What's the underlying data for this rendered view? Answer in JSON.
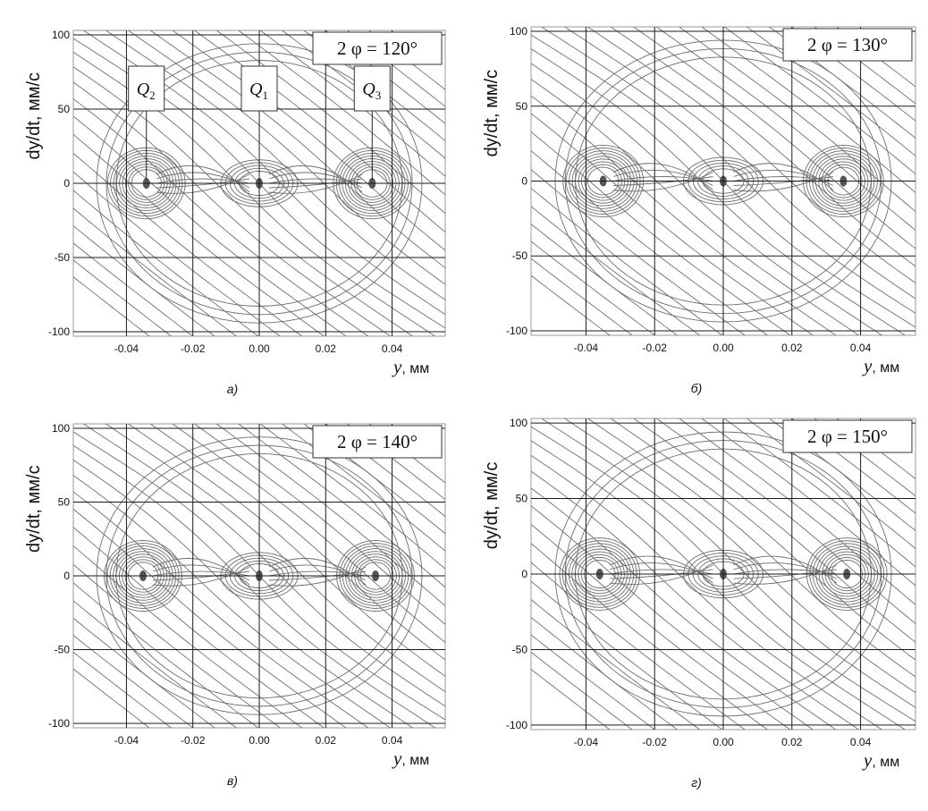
{
  "chart_data": [
    {
      "type": "scatter",
      "subtype": "phase-portrait",
      "panel_caption": "а)",
      "angle_label": "2 φ = 120°",
      "ylabel": "dy/dt,  мм/с",
      "xlabel_var": "y",
      "xlabel_unit": ", мм",
      "xlim": [
        -0.056,
        0.056
      ],
      "ylim": [
        -103,
        103
      ],
      "xticks": [
        "-0.04",
        "-0.02",
        "0.00",
        "0.02",
        "0.04"
      ],
      "yticks": [
        "100",
        "50",
        "0",
        "-50",
        "-100"
      ],
      "grid": true,
      "fixed_points": [
        {
          "name": "Q",
          "sub": "2",
          "x": -0.034,
          "y": 0
        },
        {
          "name": "Q",
          "sub": "1",
          "x": 0.0,
          "y": 0
        },
        {
          "name": "Q",
          "sub": "3",
          "x": 0.034,
          "y": 0
        }
      ],
      "attractor_amplitude_mm": 0.034,
      "boundary_mm": 0.04
    },
    {
      "type": "scatter",
      "subtype": "phase-portrait",
      "panel_caption": "б)",
      "angle_label": "2 φ = 130°",
      "ylabel": "dy/dt,  мм/с",
      "xlabel_var": "y",
      "xlabel_unit": ", мм",
      "xlim": [
        -0.056,
        0.056
      ],
      "ylim": [
        -103,
        103
      ],
      "xticks": [
        "-0.04",
        "-0.02",
        "0.00",
        "0.02",
        "0.04"
      ],
      "yticks": [
        "100",
        "50",
        "0",
        "-50",
        "-100"
      ],
      "grid": true,
      "fixed_points": [
        {
          "x": -0.035,
          "y": 0
        },
        {
          "x": 0.0,
          "y": 0
        },
        {
          "x": 0.035,
          "y": 0
        }
      ],
      "attractor_amplitude_mm": 0.035,
      "boundary_mm": 0.04
    },
    {
      "type": "scatter",
      "subtype": "phase-portrait",
      "panel_caption": "в)",
      "angle_label": "2 φ = 140°",
      "ylabel": "dy/dt,  мм/с",
      "xlabel_var": "y",
      "xlabel_unit": ", мм",
      "xlim": [
        -0.056,
        0.056
      ],
      "ylim": [
        -103,
        103
      ],
      "xticks": [
        "-0.04",
        "-0.02",
        "0.00",
        "0.02",
        "0.04"
      ],
      "yticks": [
        "100",
        "50",
        "0",
        "-50",
        "-100"
      ],
      "grid": true,
      "fixed_points": [
        {
          "x": -0.035,
          "y": 0
        },
        {
          "x": 0.0,
          "y": 0
        },
        {
          "x": 0.035,
          "y": 0
        }
      ],
      "attractor_amplitude_mm": 0.035,
      "boundary_mm": 0.04
    },
    {
      "type": "scatter",
      "subtype": "phase-portrait",
      "panel_caption": "г)",
      "angle_label": "2 φ = 150°",
      "ylabel": "dy/dt,  мм/с",
      "xlabel_var": "y",
      "xlabel_unit": ", мм",
      "xlim": [
        -0.056,
        0.056
      ],
      "ylim": [
        -103,
        103
      ],
      "xticks": [
        "-0.04",
        "-0.02",
        "0.00",
        "0.02",
        "0.04"
      ],
      "yticks": [
        "100",
        "50",
        "0",
        "-50",
        "-100"
      ],
      "grid": true,
      "fixed_points": [
        {
          "x": -0.036,
          "y": 0
        },
        {
          "x": 0.0,
          "y": 0
        },
        {
          "x": 0.036,
          "y": 0
        }
      ],
      "attractor_amplitude_mm": 0.036,
      "boundary_mm": 0.04
    }
  ],
  "colors": {
    "trajectory": "#6e6e6e",
    "grid": "#1a1a1a",
    "axis": "#000000",
    "background": "#ffffff"
  }
}
